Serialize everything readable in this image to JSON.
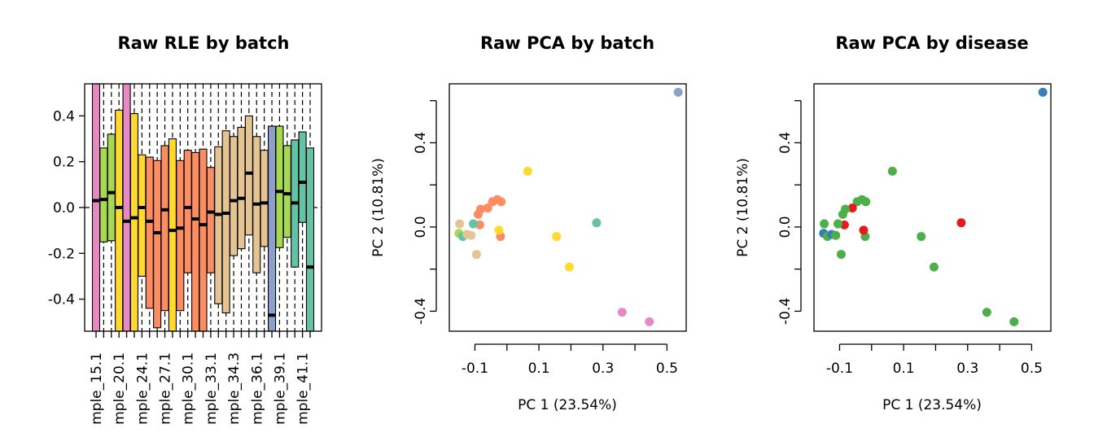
{
  "chart_data": [
    {
      "type": "boxplot",
      "title": "Raw RLE by batch",
      "xlabel": "",
      "ylabel": "",
      "ylim": [
        -0.54,
        0.54
      ],
      "yticks": [
        "0.4",
        "0.2",
        "0.0",
        "-0.2",
        "-0.4"
      ],
      "ytick_values": [
        0.4,
        0.2,
        0.0,
        -0.2,
        -0.4
      ],
      "reference_line": 0.0,
      "xtick_labels": [
        "mple_15.1",
        "mple_20.1",
        "mple_24.1",
        "mple_27.1",
        "mple_30.1",
        "mple_33.1",
        "mple_34.3",
        "mple_36.1",
        "mple_39.1",
        "mple_41.1"
      ],
      "boxes": [
        {
          "q1": -0.54,
          "median": 0.03,
          "q3": 0.54,
          "color": "#E78AC3"
        },
        {
          "q1": -0.15,
          "median": 0.035,
          "q3": 0.26,
          "color": "#A6D854"
        },
        {
          "q1": -0.145,
          "median": 0.065,
          "q3": 0.32,
          "color": "#A6D854"
        },
        {
          "q1": -0.54,
          "median": 0.0,
          "q3": 0.425,
          "color": "#FFD92F"
        },
        {
          "q1": -0.54,
          "median": -0.06,
          "q3": 0.54,
          "color": "#E78AC3"
        },
        {
          "q1": -0.54,
          "median": -0.045,
          "q3": 0.41,
          "color": "#FFD92F"
        },
        {
          "q1": -0.3,
          "median": 0.0,
          "q3": 0.23,
          "color": "#FFD92F"
        },
        {
          "q1": -0.44,
          "median": -0.06,
          "q3": 0.22,
          "color": "#FC8D62"
        },
        {
          "q1": -0.525,
          "median": -0.11,
          "q3": 0.205,
          "color": "#FC8D62"
        },
        {
          "q1": -0.45,
          "median": -0.01,
          "q3": 0.27,
          "color": "#FC8D62"
        },
        {
          "q1": -0.54,
          "median": -0.1,
          "q3": 0.3,
          "color": "#FFD92F"
        },
        {
          "q1": -0.45,
          "median": -0.09,
          "q3": 0.205,
          "color": "#FC8D62"
        },
        {
          "q1": -0.285,
          "median": 0.0,
          "q3": 0.25,
          "color": "#FC8D62"
        },
        {
          "q1": -0.54,
          "median": -0.05,
          "q3": 0.24,
          "color": "#FC8D62"
        },
        {
          "q1": -0.54,
          "median": -0.075,
          "q3": 0.255,
          "color": "#FC8D62"
        },
        {
          "q1": -0.285,
          "median": -0.02,
          "q3": 0.175,
          "color": "#FC8D62"
        },
        {
          "q1": -0.42,
          "median": -0.03,
          "q3": 0.265,
          "color": "#E5C494"
        },
        {
          "q1": -0.46,
          "median": -0.025,
          "q3": 0.335,
          "color": "#E5C494"
        },
        {
          "q1": -0.21,
          "median": 0.03,
          "q3": 0.31,
          "color": "#E5C494"
        },
        {
          "q1": -0.18,
          "median": 0.04,
          "q3": 0.35,
          "color": "#E5C494"
        },
        {
          "q1": -0.12,
          "median": 0.15,
          "q3": 0.4,
          "color": "#E5C494"
        },
        {
          "q1": -0.285,
          "median": 0.015,
          "q3": 0.31,
          "color": "#E5C494"
        },
        {
          "q1": -0.17,
          "median": 0.02,
          "q3": 0.25,
          "color": "#E5C494"
        },
        {
          "q1": -0.54,
          "median": -0.47,
          "q3": 0.355,
          "color": "#8DA0CB"
        },
        {
          "q1": -0.175,
          "median": 0.07,
          "q3": 0.355,
          "color": "#A6D854"
        },
        {
          "q1": -0.13,
          "median": 0.06,
          "q3": 0.27,
          "color": "#A6D854"
        },
        {
          "q1": -0.26,
          "median": 0.02,
          "q3": 0.295,
          "color": "#66C2A5"
        },
        {
          "q1": -0.065,
          "median": 0.11,
          "q3": 0.33,
          "color": "#66C2A5"
        },
        {
          "q1": -0.54,
          "median": -0.26,
          "q3": 0.26,
          "color": "#66C2A5"
        }
      ]
    },
    {
      "type": "scatter",
      "title": "Raw PCA by batch",
      "xlabel": "PC 1 (23.54%)",
      "ylabel": "PC 2 (10.81%)",
      "xlim": [
        -0.18,
        0.56
      ],
      "ylim": [
        -0.495,
        0.68
      ],
      "xticks": [
        "-0.1",
        "0.1",
        "0.3",
        "0.5"
      ],
      "xtick_values": [
        -0.1,
        0.0,
        0.1,
        0.2,
        0.3,
        0.4,
        0.5
      ],
      "xtick_label_values": [
        -0.1,
        0.1,
        0.3,
        0.5
      ],
      "yticks": [
        "-0.4",
        "0.0",
        "0.4"
      ],
      "ytick_values": [
        -0.4,
        -0.2,
        0.0,
        0.2,
        0.4,
        0.6
      ],
      "ytick_label_values": [
        -0.4,
        0.0,
        0.4
      ],
      "points": [
        {
          "x": 0.535,
          "y": 0.64,
          "color": "#8DA0CB"
        },
        {
          "x": 0.065,
          "y": 0.265,
          "color": "#FFD92F"
        },
        {
          "x": -0.045,
          "y": 0.12,
          "color": "#FC8D62"
        },
        {
          "x": -0.03,
          "y": 0.13,
          "color": "#FC8D62"
        },
        {
          "x": -0.018,
          "y": 0.12,
          "color": "#FC8D62"
        },
        {
          "x": -0.06,
          "y": 0.09,
          "color": "#FC8D62"
        },
        {
          "x": -0.082,
          "y": 0.085,
          "color": "#FC8D62"
        },
        {
          "x": -0.09,
          "y": 0.06,
          "color": "#FC8D62"
        },
        {
          "x": -0.085,
          "y": 0.01,
          "color": "#FC8D62"
        },
        {
          "x": -0.02,
          "y": -0.045,
          "color": "#FC8D62"
        },
        {
          "x": -0.025,
          "y": -0.015,
          "color": "#FFD92F"
        },
        {
          "x": -0.148,
          "y": 0.015,
          "color": "#E5C494"
        },
        {
          "x": -0.105,
          "y": 0.015,
          "color": "#66C2A5"
        },
        {
          "x": -0.15,
          "y": -0.03,
          "color": "#A6D854"
        },
        {
          "x": -0.138,
          "y": -0.045,
          "color": "#66C2A5"
        },
        {
          "x": -0.125,
          "y": -0.035,
          "color": "#E5C494"
        },
        {
          "x": -0.112,
          "y": -0.04,
          "color": "#E5C494"
        },
        {
          "x": -0.095,
          "y": -0.13,
          "color": "#E5C494"
        },
        {
          "x": 0.155,
          "y": -0.045,
          "color": "#FFD92F"
        },
        {
          "x": 0.195,
          "y": -0.19,
          "color": "#FFD92F"
        },
        {
          "x": 0.28,
          "y": 0.02,
          "color": "#66C2A5"
        },
        {
          "x": 0.36,
          "y": -0.405,
          "color": "#E78AC3"
        },
        {
          "x": 0.445,
          "y": -0.45,
          "color": "#E78AC3"
        }
      ]
    },
    {
      "type": "scatter",
      "title": "Raw PCA by disease",
      "xlabel": "PC 1 (23.54%)",
      "ylabel": "PC 2 (10.81%)",
      "xlim": [
        -0.18,
        0.56
      ],
      "ylim": [
        -0.495,
        0.68
      ],
      "xticks": [
        "-0.1",
        "0.1",
        "0.3",
        "0.5"
      ],
      "xtick_values": [
        -0.1,
        0.0,
        0.1,
        0.2,
        0.3,
        0.4,
        0.5
      ],
      "xtick_label_values": [
        -0.1,
        0.1,
        0.3,
        0.5
      ],
      "yticks": [
        "-0.4",
        "0.0",
        "0.4"
      ],
      "ytick_values": [
        -0.4,
        -0.2,
        0.0,
        0.2,
        0.4,
        0.6
      ],
      "ytick_label_values": [
        -0.4,
        0.0,
        0.4
      ],
      "points": [
        {
          "x": 0.535,
          "y": 0.64,
          "color": "#377EB8"
        },
        {
          "x": 0.065,
          "y": 0.265,
          "color": "#4DAF4A"
        },
        {
          "x": -0.045,
          "y": 0.12,
          "color": "#4DAF4A"
        },
        {
          "x": -0.03,
          "y": 0.13,
          "color": "#4DAF4A"
        },
        {
          "x": -0.018,
          "y": 0.12,
          "color": "#4DAF4A"
        },
        {
          "x": -0.06,
          "y": 0.09,
          "color": "#E41A1C"
        },
        {
          "x": -0.082,
          "y": 0.085,
          "color": "#4DAF4A"
        },
        {
          "x": -0.09,
          "y": 0.06,
          "color": "#4DAF4A"
        },
        {
          "x": -0.085,
          "y": 0.01,
          "color": "#E41A1C"
        },
        {
          "x": -0.02,
          "y": -0.045,
          "color": "#4DAF4A"
        },
        {
          "x": -0.025,
          "y": -0.015,
          "color": "#E41A1C"
        },
        {
          "x": -0.148,
          "y": 0.015,
          "color": "#4DAF4A"
        },
        {
          "x": -0.105,
          "y": 0.015,
          "color": "#4DAF4A"
        },
        {
          "x": -0.15,
          "y": -0.03,
          "color": "#377EB8"
        },
        {
          "x": -0.138,
          "y": -0.045,
          "color": "#4DAF4A"
        },
        {
          "x": -0.125,
          "y": -0.035,
          "color": "#377EB8"
        },
        {
          "x": -0.112,
          "y": -0.04,
          "color": "#4DAF4A"
        },
        {
          "x": -0.095,
          "y": -0.13,
          "color": "#4DAF4A"
        },
        {
          "x": 0.155,
          "y": -0.045,
          "color": "#4DAF4A"
        },
        {
          "x": 0.195,
          "y": -0.19,
          "color": "#4DAF4A"
        },
        {
          "x": 0.28,
          "y": 0.02,
          "color": "#E41A1C"
        },
        {
          "x": 0.36,
          "y": -0.405,
          "color": "#4DAF4A"
        },
        {
          "x": 0.445,
          "y": -0.45,
          "color": "#4DAF4A"
        }
      ]
    }
  ]
}
